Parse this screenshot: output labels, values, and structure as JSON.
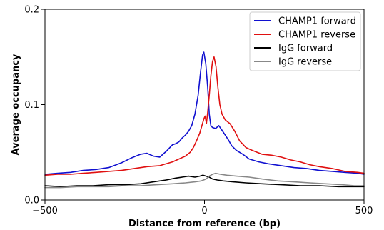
{
  "chart_data": {
    "type": "line",
    "xlabel": "Distance from reference (bp)",
    "ylabel": "Average occupancy",
    "xlim": [
      -500,
      500
    ],
    "ylim": [
      0,
      0.2
    ],
    "x_ticks": [
      {
        "value": -500,
        "label": "−500"
      },
      {
        "value": 0,
        "label": "0"
      },
      {
        "value": 500,
        "label": "500"
      }
    ],
    "y_ticks": [
      {
        "value": 0,
        "label": "0.0"
      },
      {
        "value": 0.1,
        "label": "0.1"
      },
      {
        "value": 0.2,
        "label": "0.2"
      }
    ],
    "grid": false,
    "legend_position": "top-right",
    "series": [
      {
        "name": "CHAMP1 forward",
        "color": "#1010d0",
        "points": [
          [
            -500,
            0.027
          ],
          [
            -460,
            0.028
          ],
          [
            -420,
            0.029
          ],
          [
            -380,
            0.031
          ],
          [
            -340,
            0.032
          ],
          [
            -300,
            0.034
          ],
          [
            -260,
            0.039
          ],
          [
            -230,
            0.044
          ],
          [
            -200,
            0.048
          ],
          [
            -180,
            0.049
          ],
          [
            -160,
            0.046
          ],
          [
            -140,
            0.045
          ],
          [
            -120,
            0.051
          ],
          [
            -100,
            0.058
          ],
          [
            -90,
            0.059
          ],
          [
            -80,
            0.061
          ],
          [
            -70,
            0.065
          ],
          [
            -60,
            0.068
          ],
          [
            -50,
            0.072
          ],
          [
            -40,
            0.078
          ],
          [
            -30,
            0.09
          ],
          [
            -20,
            0.11
          ],
          [
            -12,
            0.135
          ],
          [
            -6,
            0.152
          ],
          [
            -2,
            0.155
          ],
          [
            4,
            0.143
          ],
          [
            10,
            0.118
          ],
          [
            15,
            0.09
          ],
          [
            20,
            0.078
          ],
          [
            25,
            0.076
          ],
          [
            35,
            0.075
          ],
          [
            45,
            0.078
          ],
          [
            55,
            0.073
          ],
          [
            65,
            0.068
          ],
          [
            75,
            0.063
          ],
          [
            85,
            0.057
          ],
          [
            100,
            0.052
          ],
          [
            120,
            0.048
          ],
          [
            140,
            0.043
          ],
          [
            170,
            0.04
          ],
          [
            200,
            0.038
          ],
          [
            240,
            0.036
          ],
          [
            280,
            0.034
          ],
          [
            320,
            0.033
          ],
          [
            360,
            0.031
          ],
          [
            400,
            0.03
          ],
          [
            440,
            0.029
          ],
          [
            480,
            0.028
          ],
          [
            500,
            0.027
          ]
        ]
      },
      {
        "name": "CHAMP1 reverse",
        "color": "#e01010",
        "points": [
          [
            -500,
            0.026
          ],
          [
            -460,
            0.027
          ],
          [
            -420,
            0.027
          ],
          [
            -380,
            0.028
          ],
          [
            -340,
            0.029
          ],
          [
            -300,
            0.03
          ],
          [
            -260,
            0.031
          ],
          [
            -220,
            0.033
          ],
          [
            -180,
            0.035
          ],
          [
            -140,
            0.036
          ],
          [
            -100,
            0.04
          ],
          [
            -80,
            0.043
          ],
          [
            -60,
            0.046
          ],
          [
            -45,
            0.05
          ],
          [
            -35,
            0.055
          ],
          [
            -25,
            0.062
          ],
          [
            -15,
            0.07
          ],
          [
            -8,
            0.078
          ],
          [
            -2,
            0.085
          ],
          [
            2,
            0.088
          ],
          [
            6,
            0.08
          ],
          [
            10,
            0.092
          ],
          [
            15,
            0.11
          ],
          [
            20,
            0.13
          ],
          [
            25,
            0.145
          ],
          [
            30,
            0.15
          ],
          [
            36,
            0.14
          ],
          [
            42,
            0.118
          ],
          [
            48,
            0.1
          ],
          [
            55,
            0.09
          ],
          [
            65,
            0.084
          ],
          [
            80,
            0.08
          ],
          [
            95,
            0.072
          ],
          [
            110,
            0.062
          ],
          [
            130,
            0.055
          ],
          [
            150,
            0.052
          ],
          [
            180,
            0.048
          ],
          [
            210,
            0.047
          ],
          [
            240,
            0.045
          ],
          [
            270,
            0.042
          ],
          [
            300,
            0.04
          ],
          [
            330,
            0.037
          ],
          [
            360,
            0.035
          ],
          [
            400,
            0.033
          ],
          [
            440,
            0.03
          ],
          [
            480,
            0.029
          ],
          [
            500,
            0.028
          ]
        ]
      },
      {
        "name": "IgG forward",
        "color": "#000000",
        "points": [
          [
            -500,
            0.015
          ],
          [
            -450,
            0.014
          ],
          [
            -400,
            0.015
          ],
          [
            -350,
            0.015
          ],
          [
            -300,
            0.016
          ],
          [
            -250,
            0.016
          ],
          [
            -200,
            0.017
          ],
          [
            -160,
            0.019
          ],
          [
            -120,
            0.021
          ],
          [
            -90,
            0.023
          ],
          [
            -70,
            0.024
          ],
          [
            -50,
            0.025
          ],
          [
            -30,
            0.024
          ],
          [
            -15,
            0.025
          ],
          [
            -5,
            0.026
          ],
          [
            5,
            0.025
          ],
          [
            15,
            0.024
          ],
          [
            25,
            0.022
          ],
          [
            40,
            0.021
          ],
          [
            60,
            0.02
          ],
          [
            90,
            0.019
          ],
          [
            130,
            0.018
          ],
          [
            180,
            0.017
          ],
          [
            240,
            0.016
          ],
          [
            300,
            0.015
          ],
          [
            360,
            0.015
          ],
          [
            420,
            0.014
          ],
          [
            470,
            0.014
          ],
          [
            500,
            0.014
          ]
        ]
      },
      {
        "name": "IgG reverse",
        "color": "#888888",
        "points": [
          [
            -500,
            0.013
          ],
          [
            -450,
            0.013
          ],
          [
            -400,
            0.014
          ],
          [
            -350,
            0.014
          ],
          [
            -300,
            0.014
          ],
          [
            -250,
            0.015
          ],
          [
            -200,
            0.015
          ],
          [
            -150,
            0.016
          ],
          [
            -100,
            0.017
          ],
          [
            -60,
            0.018
          ],
          [
            -30,
            0.019
          ],
          [
            -10,
            0.02
          ],
          [
            5,
            0.022
          ],
          [
            15,
            0.025
          ],
          [
            25,
            0.027
          ],
          [
            35,
            0.028
          ],
          [
            50,
            0.027
          ],
          [
            70,
            0.026
          ],
          [
            100,
            0.025
          ],
          [
            140,
            0.024
          ],
          [
            180,
            0.022
          ],
          [
            230,
            0.02
          ],
          [
            280,
            0.019
          ],
          [
            330,
            0.018
          ],
          [
            380,
            0.017
          ],
          [
            430,
            0.016
          ],
          [
            470,
            0.015
          ],
          [
            500,
            0.015
          ]
        ]
      }
    ]
  }
}
